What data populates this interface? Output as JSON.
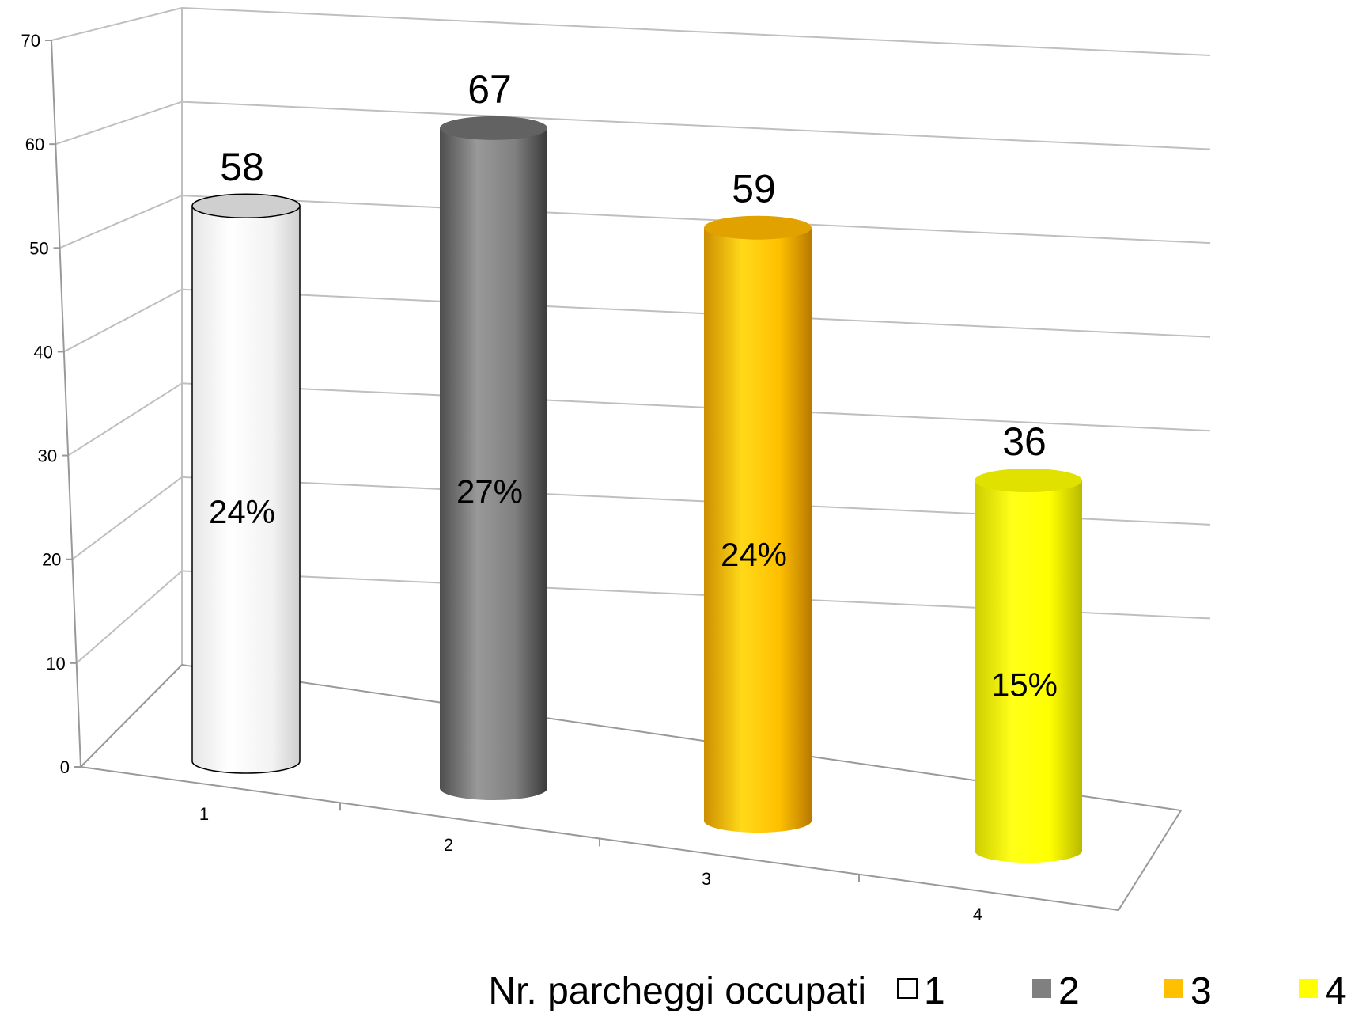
{
  "chart_data": {
    "type": "bar",
    "title": "",
    "xlabel": "",
    "ylabel": "",
    "ylim": [
      0,
      70
    ],
    "yticks": [
      0,
      10,
      20,
      30,
      40,
      50,
      60,
      70
    ],
    "grid": true,
    "style": "3d-cylinder",
    "categories": [
      "1",
      "2",
      "3",
      "4"
    ],
    "values": [
      58,
      67,
      59,
      36
    ],
    "data_labels": [
      "58",
      "67",
      "59",
      "36"
    ],
    "percent_labels": [
      "24%",
      "27%",
      "24%",
      "15%"
    ],
    "colors": [
      "#ffffff",
      "#808080",
      "#ffc000",
      "#ffff00"
    ],
    "legend": {
      "title": "Nr. parcheggi occupati",
      "placement": "bottom",
      "entries": [
        "1",
        "2",
        "3",
        "4"
      ]
    }
  }
}
